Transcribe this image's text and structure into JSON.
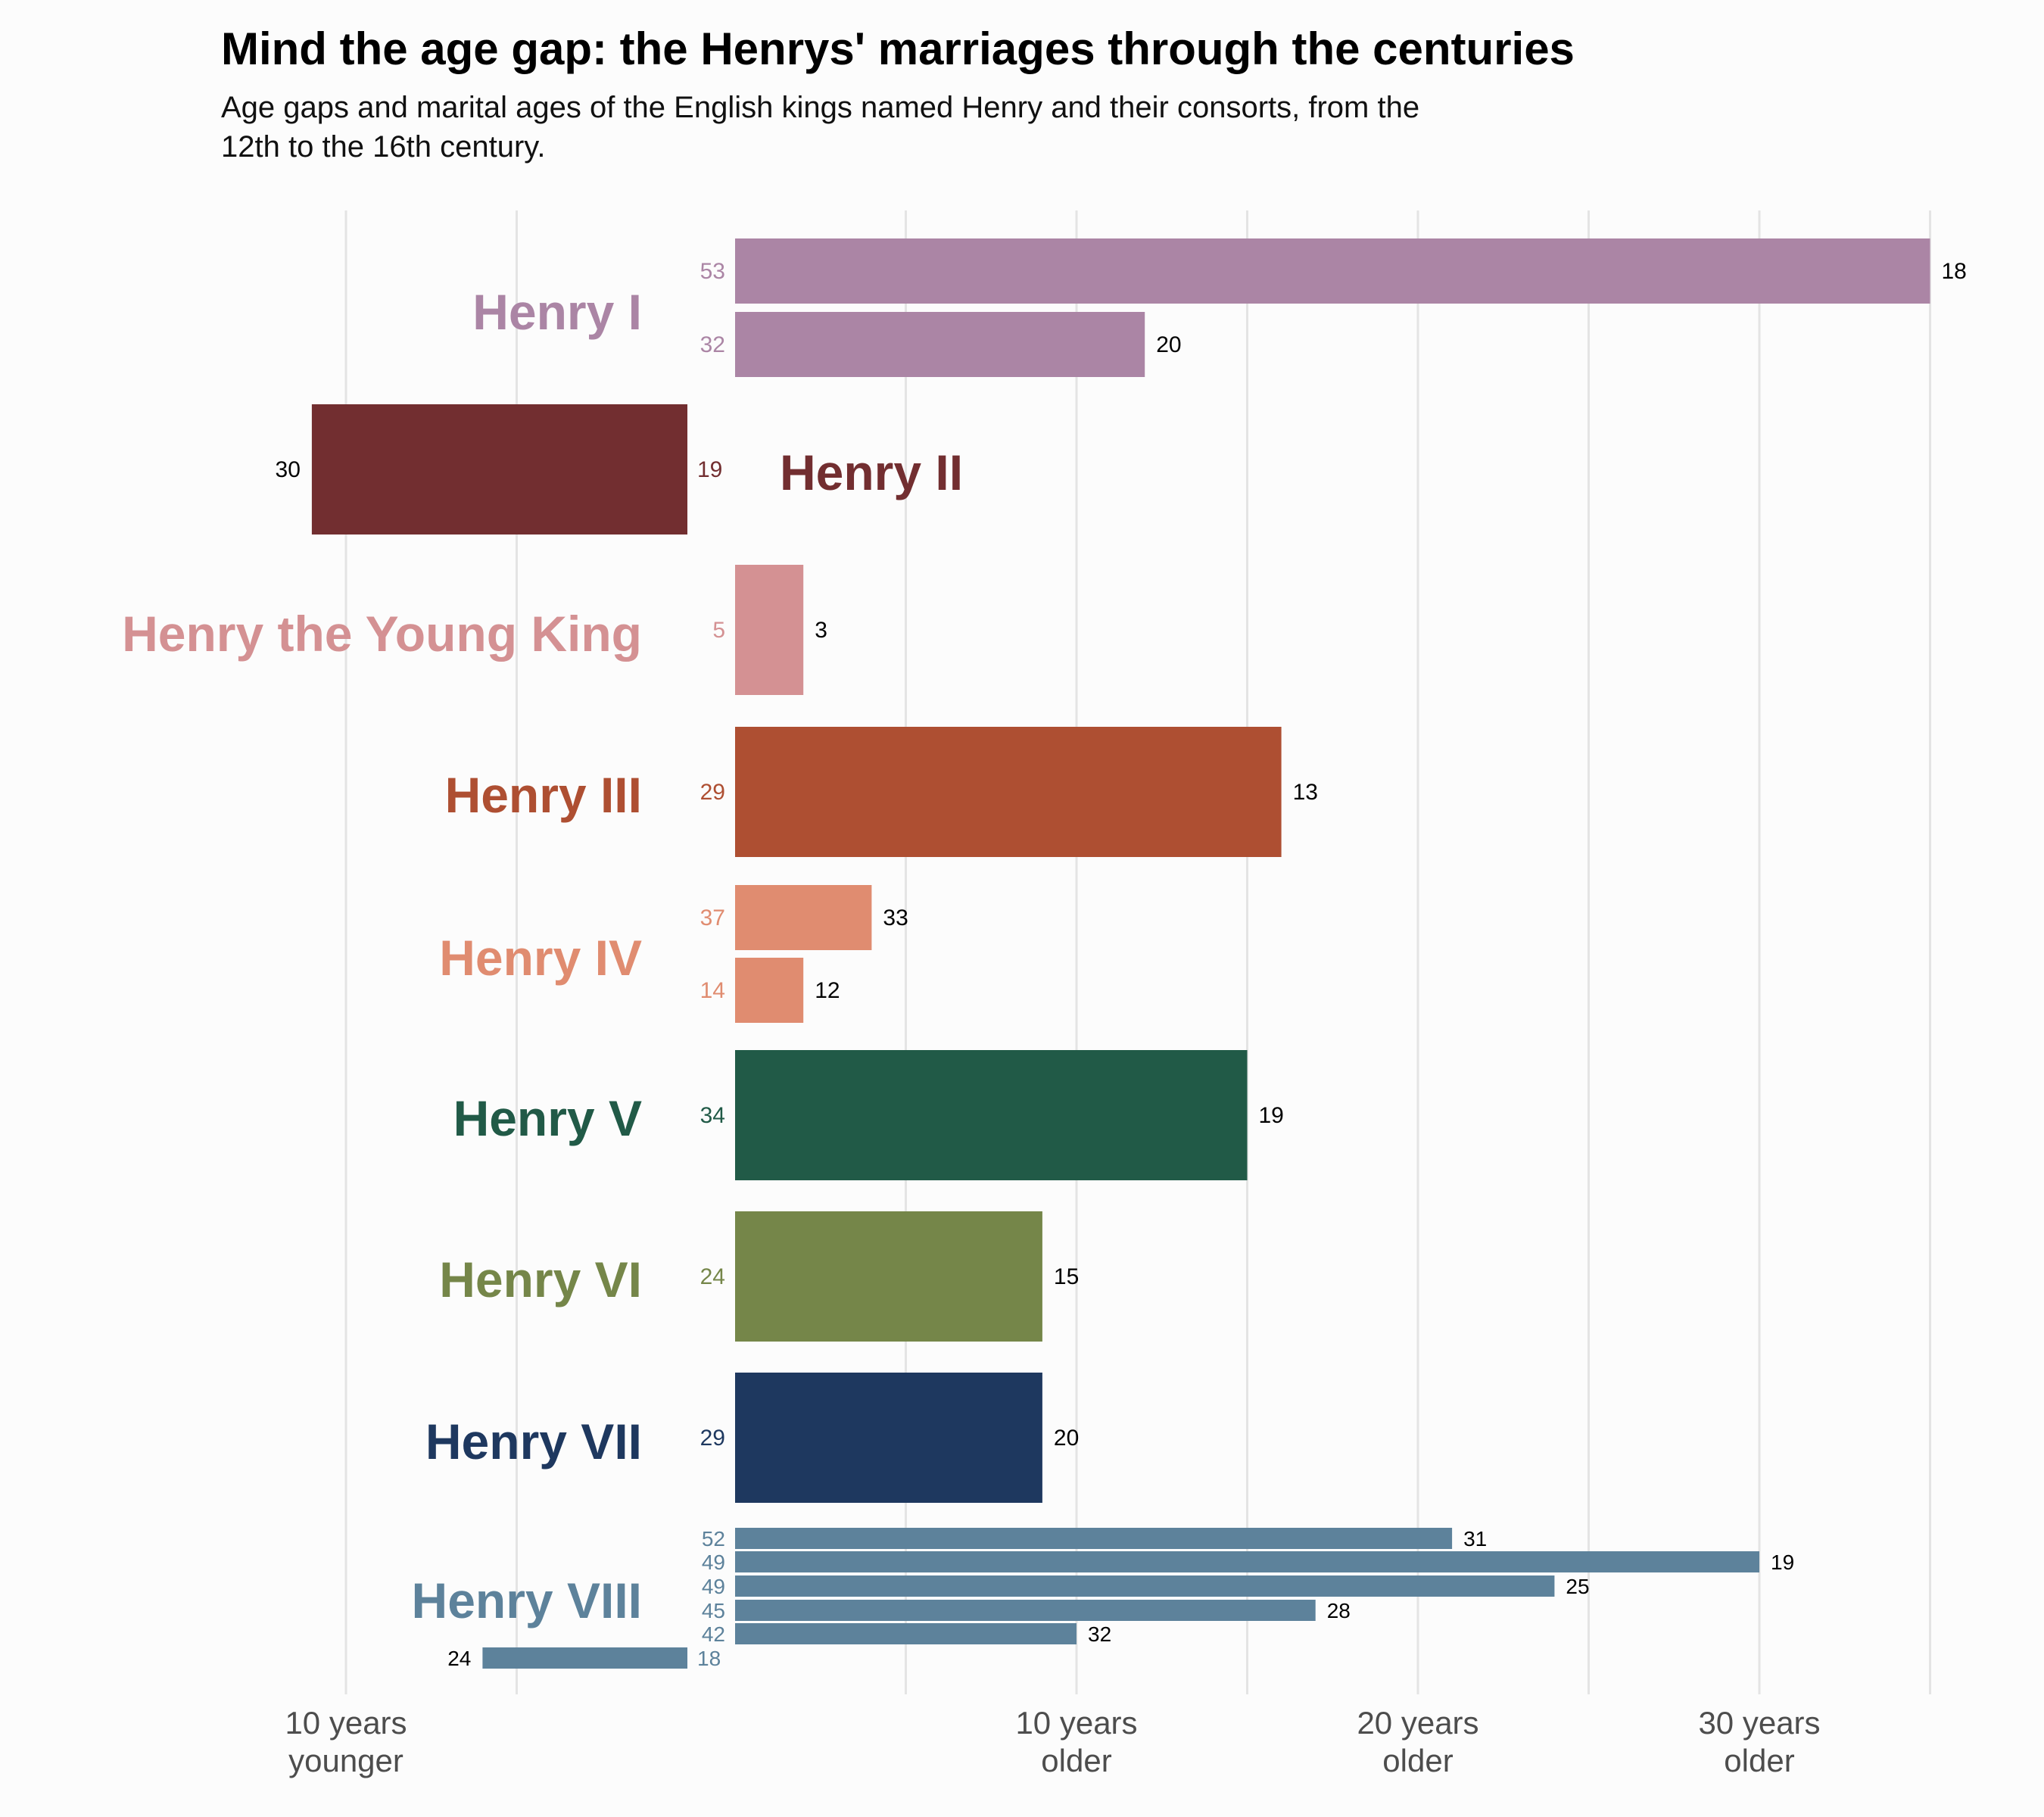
{
  "title": "Mind the age gap: the Henrys' marriages through the centuries",
  "subtitle": [
    "Age gaps and marital ages of the English kings named Henry and their consorts, from the",
    "12th to the 16th century."
  ],
  "chart_data": {
    "type": "bar",
    "orientation": "horizontal",
    "value_meaning": "age gap in years (king age minus consort age); negative = king younger than consort",
    "xlim": [
      -12,
      34.5
    ],
    "x_ticks": [
      {
        "value": -10,
        "label": [
          "10 years",
          "younger"
        ]
      },
      {
        "value": 10,
        "label": [
          "10 years",
          "older"
        ]
      },
      {
        "value": 20,
        "label": [
          "20 years",
          "older"
        ]
      },
      {
        "value": 30,
        "label": [
          "30 years",
          "older"
        ]
      }
    ],
    "grid": true,
    "kings": [
      {
        "name": "Henry I",
        "color": "#ab85a5",
        "marriages": [
          {
            "king_age": 53,
            "consort_age": 18,
            "gap": 35
          },
          {
            "king_age": 32,
            "consort_age": 20,
            "gap": 12
          }
        ]
      },
      {
        "name": "Henry II",
        "color": "#722e30",
        "marriages": [
          {
            "king_age": 19,
            "consort_age": 30,
            "gap": -11
          }
        ]
      },
      {
        "name": "Henry the Young King",
        "color": "#d49193",
        "marriages": [
          {
            "king_age": 5,
            "consort_age": 3,
            "gap": 2
          }
        ]
      },
      {
        "name": "Henry III",
        "color": "#ae4f32",
        "marriages": [
          {
            "king_age": 29,
            "consort_age": 13,
            "gap": 16
          }
        ]
      },
      {
        "name": "Henry IV",
        "color": "#e08c70",
        "marriages": [
          {
            "king_age": 37,
            "consort_age": 33,
            "gap": 4
          },
          {
            "king_age": 14,
            "consort_age": 12,
            "gap": 2
          }
        ]
      },
      {
        "name": "Henry V",
        "color": "#215a47",
        "marriages": [
          {
            "king_age": 34,
            "consort_age": 19,
            "gap": 15
          }
        ]
      },
      {
        "name": "Henry VI",
        "color": "#758649",
        "marriages": [
          {
            "king_age": 24,
            "consort_age": 15,
            "gap": 9
          }
        ]
      },
      {
        "name": "Henry VII",
        "color": "#1e385f",
        "marriages": [
          {
            "king_age": 29,
            "consort_age": 20,
            "gap": 9
          }
        ]
      },
      {
        "name": "Henry VIII",
        "color": "#5d829b",
        "marriages": [
          {
            "king_age": 52,
            "consort_age": 31,
            "gap": 21
          },
          {
            "king_age": 49,
            "consort_age": 19,
            "gap": 30
          },
          {
            "king_age": 49,
            "consort_age": 25,
            "gap": 24
          },
          {
            "king_age": 45,
            "consort_age": 28,
            "gap": 17
          },
          {
            "king_age": 42,
            "consort_age": 32,
            "gap": 10
          },
          {
            "king_age": 18,
            "consort_age": 24,
            "gap": -6
          }
        ]
      }
    ]
  }
}
